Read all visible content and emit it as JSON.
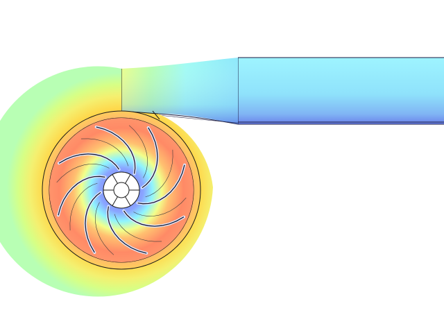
{
  "scene": {
    "subject": "centrifugal-pump-impeller-and-volute",
    "blade_count": 8,
    "colors": {
      "background": "#ffffff",
      "outlet_light": "#9ff6ff",
      "outlet_mid": "#86e6fb",
      "outlet_dark": "#6e8ef0",
      "volute_outer": "#b9ffb0",
      "volute_inner": "#ffd24a",
      "impeller_hot": "#ff8a66",
      "impeller_warm": "#ffb077",
      "eye_cool": "#8fa0ff",
      "eye_cyan": "#7ff4ff",
      "outline": "#000000",
      "hub_fill": "#ffffff"
    }
  }
}
